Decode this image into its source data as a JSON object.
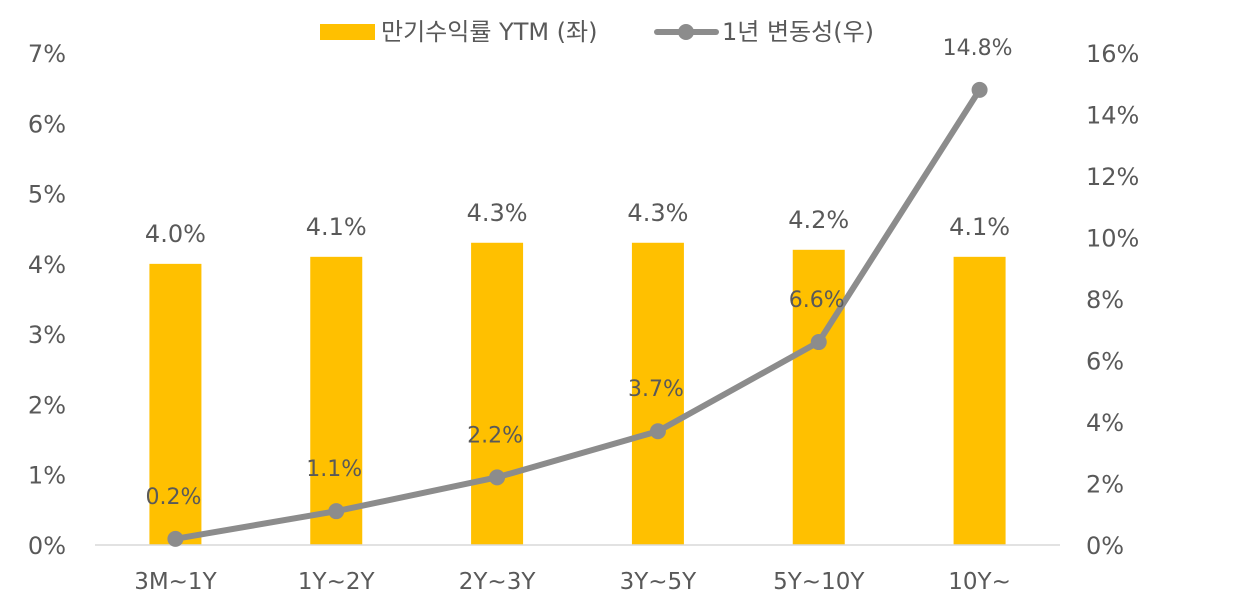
{
  "chart_data": {
    "type": "bar+line",
    "categories": [
      "3M~1Y",
      "1Y~2Y",
      "2Y~3Y",
      "3Y~5Y",
      "5Y~10Y",
      "10Y~"
    ],
    "series": [
      {
        "name": "만기수익률 YTM (좌)",
        "type": "bar",
        "axis": "left",
        "color": "#FFC000",
        "values": [
          4.0,
          4.1,
          4.3,
          4.3,
          4.2,
          4.1
        ],
        "labels": [
          "4.0%",
          "4.1%",
          "4.3%",
          "4.3%",
          "4.2%",
          "4.1%"
        ]
      },
      {
        "name": "1년 변동성(우)",
        "type": "line",
        "axis": "right",
        "color": "#8C8C8C",
        "values": [
          0.2,
          1.1,
          2.2,
          3.7,
          6.6,
          14.8
        ],
        "labels": [
          "0.2%",
          "1.1%",
          "2.2%",
          "3.7%",
          "6.6%",
          "14.8%"
        ]
      }
    ],
    "y_left": {
      "range": [
        0,
        7
      ],
      "ticks": [
        "0%",
        "1%",
        "2%",
        "3%",
        "4%",
        "5%",
        "6%",
        "7%"
      ]
    },
    "y_right": {
      "range": [
        0,
        16
      ],
      "ticks": [
        "0%",
        "2%",
        "4%",
        "6%",
        "8%",
        "10%",
        "12%",
        "14%",
        "16%"
      ]
    },
    "grid": false,
    "legend": "top"
  }
}
